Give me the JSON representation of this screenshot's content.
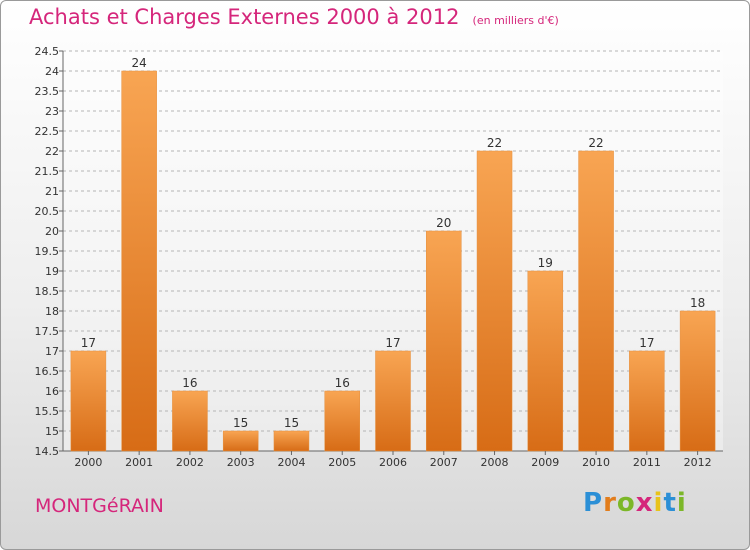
{
  "title": "Achats et Charges Externes 2000 à 2012",
  "unit": "(en milliers d'€)",
  "commune": "MONTGéRAIN",
  "logo": {
    "letters": [
      "P",
      "r",
      "o",
      "x",
      "i",
      "t",
      "i"
    ],
    "colors": [
      "#2b8fd6",
      "#e27d1c",
      "#7cb728",
      "#d5267b",
      "#e8c31a",
      "#2b8fd6",
      "#7cb728"
    ]
  },
  "colors": {
    "bar_light": "#f8a553",
    "bar_dark": "#d76c16",
    "accent": "#d5267b",
    "grid": "#b5b5b5"
  },
  "chart_data": {
    "type": "bar",
    "categories": [
      "2000",
      "2001",
      "2002",
      "2003",
      "2004",
      "2005",
      "2006",
      "2007",
      "2008",
      "2009",
      "2010",
      "2011",
      "2012"
    ],
    "values": [
      17,
      24,
      16,
      15,
      15,
      16,
      17,
      20,
      22,
      19,
      22,
      17,
      18
    ],
    "ylim": [
      14.5,
      24.5
    ],
    "yticks": [
      "14.5",
      "15",
      "15.5",
      "16",
      "16.5",
      "17",
      "17.5",
      "18",
      "18.5",
      "19",
      "19.5",
      "20",
      "20.5",
      "21",
      "21.5",
      "22",
      "22.5",
      "23",
      "23.5",
      "24",
      "24.5"
    ],
    "grid": true
  }
}
